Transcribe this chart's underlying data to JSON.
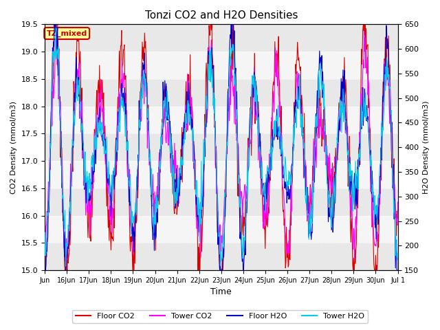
{
  "title": "Tonzi CO2 and H2O Densities",
  "xlabel": "Time",
  "ylabel_left": "CO2 Density (mmol/m3)",
  "ylabel_right": "H2O Density (mmol/m3)",
  "ylim_left": [
    15.0,
    19.5
  ],
  "ylim_right": [
    150,
    650
  ],
  "yticks_left": [
    15.0,
    15.5,
    16.0,
    16.5,
    17.0,
    17.5,
    18.0,
    18.5,
    19.0,
    19.5
  ],
  "yticks_right": [
    150,
    200,
    250,
    300,
    350,
    400,
    450,
    500,
    550,
    600,
    650
  ],
  "colors": {
    "floor_co2": "#dd0000",
    "tower_co2": "#ff00ff",
    "floor_h2o": "#0000cc",
    "tower_h2o": "#00ccee"
  },
  "band_colors": [
    "#e8e8e8",
    "#f5f5f5"
  ],
  "annotation_text": "TZ_mixed",
  "annotation_color": "#cc0000",
  "annotation_bg": "#ffff99",
  "grid_color": "#ffffff",
  "legend_labels": [
    "Floor CO2",
    "Tower CO2",
    "Floor H2O",
    "Tower H2O"
  ],
  "figsize": [
    6.4,
    4.8
  ],
  "dpi": 100
}
